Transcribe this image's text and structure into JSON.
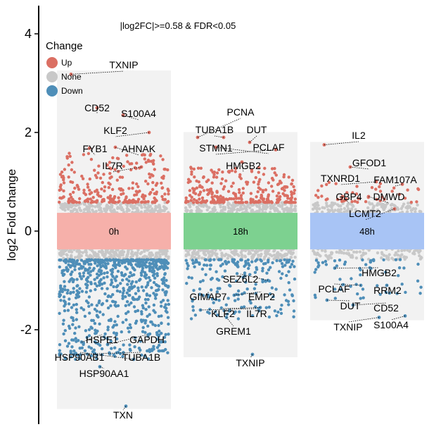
{
  "chart_data": {
    "type": "scatter",
    "title": "|log2FC|>=0.58 & FDR<0.05",
    "xlabel": "",
    "ylabel": "log2 Fold change",
    "ylim": [
      -3.9,
      4.5
    ],
    "yticks": [
      -2,
      0,
      2,
      4
    ],
    "threshold": 0.58,
    "legend": {
      "title": "Change",
      "position": "top-left",
      "items": [
        {
          "label": "Up",
          "color": "#db6f63"
        },
        {
          "label": "None",
          "color": "#c8c8c8"
        },
        {
          "label": "Down",
          "color": "#4e8eb8"
        }
      ]
    },
    "groups": [
      {
        "name": "0h",
        "band_color": "#f6b0aa",
        "range": [
          -3.55,
          3.2
        ],
        "density": {
          "up": 260,
          "none": 520,
          "down": 700
        },
        "up_extent": 1.6,
        "down_extent": -2.6,
        "genes": [
          {
            "label": "TXNIP",
            "y": 3.18
          },
          {
            "label": "CD52",
            "y": 2.5
          },
          {
            "label": "S100A4",
            "y": 2.35
          },
          {
            "label": "KLF2",
            "y": 2.0
          },
          {
            "label": "FYB1",
            "y": 1.68
          },
          {
            "label": "AHNAK",
            "y": 1.7
          },
          {
            "label": "IL7R",
            "y": 1.3
          },
          {
            "label": "HSPE1",
            "y": -2.25
          },
          {
            "label": "GAPDH",
            "y": -2.3
          },
          {
            "label": "HSP90AB1",
            "y": -2.6
          },
          {
            "label": "TUBA1B",
            "y": -2.5
          },
          {
            "label": "HSP90AA1",
            "y": -2.75
          },
          {
            "label": "TXN",
            "y": -3.55
          }
        ]
      },
      {
        "name": "18h",
        "band_color": "#7dd190",
        "range": [
          -2.5,
          1.95
        ],
        "density": {
          "up": 280,
          "none": 520,
          "down": 200
        },
        "up_extent": 1.3,
        "down_extent": -1.8,
        "genes": [
          {
            "label": "PCNA",
            "y": 1.9
          },
          {
            "label": "TUBA1B",
            "y": 1.9
          },
          {
            "label": "DUT",
            "y": 1.8
          },
          {
            "label": "STMN1",
            "y": 1.65
          },
          {
            "label": "PCLAF",
            "y": 1.7
          },
          {
            "label": "HMGB2",
            "y": 1.4
          },
          {
            "label": "SEZ6L2",
            "y": -1.0
          },
          {
            "label": "GIMAP7",
            "y": -1.3
          },
          {
            "label": "EMP2",
            "y": -1.3
          },
          {
            "label": "KLF2",
            "y": -1.55
          },
          {
            "label": "IL7R",
            "y": -1.6
          },
          {
            "label": "GREM1",
            "y": -1.75
          },
          {
            "label": "TXNIP",
            "y": -2.5
          }
        ]
      },
      {
        "name": "48h",
        "band_color": "#a8c4f5",
        "range": [
          -1.75,
          1.75
        ],
        "density": {
          "up": 45,
          "none": 300,
          "down": 60
        },
        "up_extent": 1.0,
        "down_extent": -1.4,
        "genes": [
          {
            "label": "IL2",
            "y": 1.75
          },
          {
            "label": "GFOD1",
            "y": 1.3
          },
          {
            "label": "TXNRD1",
            "y": 1.0
          },
          {
            "label": "FAM107A",
            "y": 0.95
          },
          {
            "label": "GBP4",
            "y": 0.7
          },
          {
            "label": "DMWD",
            "y": 0.7
          },
          {
            "label": "LCMT2",
            "y": 0.45
          },
          {
            "label": "HMGB2",
            "y": -0.75
          },
          {
            "label": "PCLAF",
            "y": -1.1
          },
          {
            "label": "RRM2",
            "y": -1.1
          },
          {
            "label": "DUT",
            "y": -1.4
          },
          {
            "label": "CD52",
            "y": -1.5
          },
          {
            "label": "TXNIP",
            "y": -1.75
          },
          {
            "label": "S100A4",
            "y": -1.72
          }
        ]
      }
    ]
  }
}
